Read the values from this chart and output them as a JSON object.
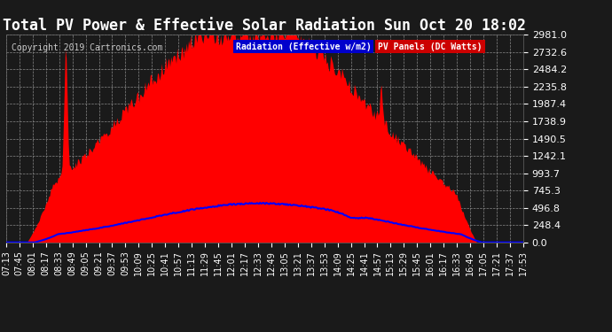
{
  "title": "Total PV Power & Effective Solar Radiation Sun Oct 20 18:02",
  "copyright": "Copyright 2019 Cartronics.com",
  "legend_labels": [
    "Radiation (Effective w/m2)",
    "PV Panels (DC Watts)"
  ],
  "legend_colors_bg": [
    "#0000cc",
    "#cc0000"
  ],
  "legend_text_color": "#ffffff",
  "bg_color": "#1a1a1a",
  "plot_bg_color": "#1a1a1a",
  "grid_color": "#888888",
  "y_max": 2981.0,
  "y_min": 0.0,
  "y_ticks": [
    0.0,
    248.4,
    496.8,
    745.3,
    993.7,
    1242.1,
    1490.5,
    1738.9,
    1987.4,
    2235.8,
    2484.2,
    2732.6,
    2981.0
  ],
  "x_labels": [
    "07:13",
    "07:45",
    "08:01",
    "08:17",
    "08:33",
    "08:49",
    "09:05",
    "09:21",
    "09:37",
    "09:53",
    "10:09",
    "10:25",
    "10:41",
    "10:57",
    "11:13",
    "11:29",
    "11:45",
    "12:01",
    "12:17",
    "12:33",
    "12:49",
    "13:05",
    "13:21",
    "13:37",
    "13:53",
    "14:09",
    "14:25",
    "14:41",
    "14:57",
    "15:13",
    "15:29",
    "15:45",
    "16:01",
    "16:17",
    "16:33",
    "16:49",
    "17:05",
    "17:21",
    "17:37",
    "17:53"
  ],
  "title_color": "#ffffff",
  "title_fontsize": 12,
  "tick_color": "#ffffff",
  "tick_fontsize": 7,
  "ytick_fontsize": 8,
  "copyright_color": "#cccccc",
  "copyright_fontsize": 7,
  "pv_color": "#ff0000",
  "rad_color": "#0000ff",
  "pv_max": 2981.0,
  "rad_max": 560.0
}
